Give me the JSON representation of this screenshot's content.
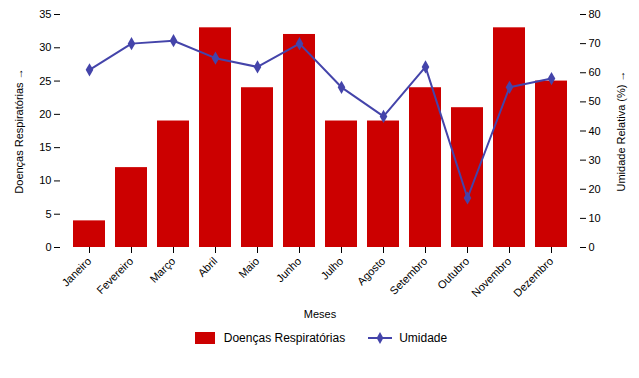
{
  "chart_data": {
    "type": "bar",
    "xlabel": "Meses",
    "ylabel": "Doenças Respiratórias",
    "y2label": "Umidade Relativa (%)",
    "categories": [
      "Janeiro",
      "Fevereiro",
      "Março",
      "Abril",
      "Maio",
      "Junho",
      "Julho",
      "Agosto",
      "Setembro",
      "Outubro",
      "Novembro",
      "Dezembro"
    ],
    "series": [
      {
        "name": "Doenças Respiratórias",
        "type": "bar",
        "color": "#cc0000",
        "values": [
          4,
          12,
          19,
          33,
          24,
          32,
          19,
          19,
          24,
          21,
          33,
          25
        ]
      },
      {
        "name": "Umidade",
        "type": "line",
        "axis": "y2",
        "color": "#4444aa",
        "marker": "diamond",
        "values": [
          61,
          70,
          71,
          65,
          62,
          70,
          55,
          45,
          62,
          17,
          55,
          58
        ]
      }
    ],
    "ylim": [
      0,
      35
    ],
    "yticks": [
      0,
      5,
      10,
      15,
      20,
      25,
      30,
      35
    ],
    "y2lim": [
      0,
      80
    ],
    "y2ticks": [
      0,
      10,
      20,
      30,
      40,
      50,
      60,
      70,
      80
    ],
    "grid": false,
    "legend": "bottom"
  }
}
